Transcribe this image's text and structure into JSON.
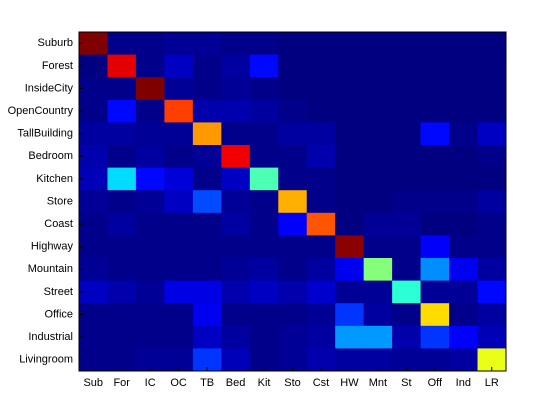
{
  "chart_data": {
    "type": "heatmap",
    "x": [
      "Sub",
      "For",
      "IC",
      "OC",
      "TB",
      "Bed",
      "Kit",
      "Sto",
      "Cst",
      "HW",
      "Mnt",
      "St",
      "Off",
      "Ind",
      "LR"
    ],
    "y": [
      "Suburb",
      "Forest",
      "InsideCity",
      "OpenCountry",
      "TallBuilding",
      "Bedroom",
      "Kitchen",
      "Store",
      "Coast",
      "Highway",
      "Mountain",
      "Street",
      "Office",
      "Industrial",
      "Livingroom"
    ],
    "colormap": "jet",
    "values": [
      [
        0.93,
        0.03,
        0.03,
        0.04,
        0.04,
        0.03,
        0.03,
        0.02,
        0.02,
        0.02,
        0.02,
        0.02,
        0.02,
        0.02,
        0.02
      ],
      [
        0.02,
        0.84,
        0.03,
        0.08,
        0.03,
        0.05,
        0.14,
        0.02,
        0.02,
        0.02,
        0.02,
        0.02,
        0.02,
        0.02,
        0.02
      ],
      [
        0.03,
        0.03,
        0.93,
        0.04,
        0.03,
        0.04,
        0.03,
        0.02,
        0.02,
        0.02,
        0.02,
        0.02,
        0.02,
        0.02,
        0.02
      ],
      [
        0.03,
        0.14,
        0.03,
        0.76,
        0.06,
        0.06,
        0.05,
        0.03,
        0.02,
        0.02,
        0.02,
        0.02,
        0.02,
        0.02,
        0.02
      ],
      [
        0.05,
        0.05,
        0.04,
        0.04,
        0.68,
        0.03,
        0.03,
        0.05,
        0.05,
        0.02,
        0.02,
        0.02,
        0.14,
        0.03,
        0.08
      ],
      [
        0.06,
        0.03,
        0.05,
        0.03,
        0.04,
        0.83,
        0.03,
        0.03,
        0.06,
        0.02,
        0.02,
        0.02,
        0.02,
        0.02,
        0.03
      ],
      [
        0.07,
        0.33,
        0.14,
        0.1,
        0.03,
        0.08,
        0.43,
        0.03,
        0.03,
        0.02,
        0.02,
        0.02,
        0.02,
        0.02,
        0.02
      ],
      [
        0.04,
        0.03,
        0.04,
        0.08,
        0.2,
        0.04,
        0.03,
        0.66,
        0.03,
        0.02,
        0.02,
        0.03,
        0.03,
        0.03,
        0.05
      ],
      [
        0.03,
        0.05,
        0.03,
        0.03,
        0.03,
        0.05,
        0.03,
        0.13,
        0.74,
        0.02,
        0.04,
        0.04,
        0.02,
        0.02,
        0.03
      ],
      [
        0.03,
        0.03,
        0.03,
        0.03,
        0.03,
        0.03,
        0.03,
        0.03,
        0.03,
        0.92,
        0.03,
        0.03,
        0.13,
        0.03,
        0.03
      ],
      [
        0.04,
        0.03,
        0.03,
        0.03,
        0.03,
        0.04,
        0.05,
        0.03,
        0.05,
        0.12,
        0.48,
        0.03,
        0.26,
        0.12,
        0.05
      ],
      [
        0.08,
        0.06,
        0.04,
        0.11,
        0.11,
        0.06,
        0.08,
        0.06,
        0.09,
        0.04,
        0.04,
        0.4,
        0.04,
        0.04,
        0.14
      ],
      [
        0.03,
        0.03,
        0.03,
        0.03,
        0.12,
        0.03,
        0.03,
        0.03,
        0.04,
        0.18,
        0.05,
        0.03,
        0.62,
        0.03,
        0.05
      ],
      [
        0.03,
        0.03,
        0.03,
        0.03,
        0.08,
        0.05,
        0.03,
        0.04,
        0.05,
        0.27,
        0.27,
        0.06,
        0.18,
        0.13,
        0.07
      ],
      [
        0.03,
        0.03,
        0.04,
        0.04,
        0.18,
        0.07,
        0.03,
        0.04,
        0.06,
        0.05,
        0.05,
        0.04,
        0.04,
        0.05,
        0.57
      ]
    ]
  }
}
